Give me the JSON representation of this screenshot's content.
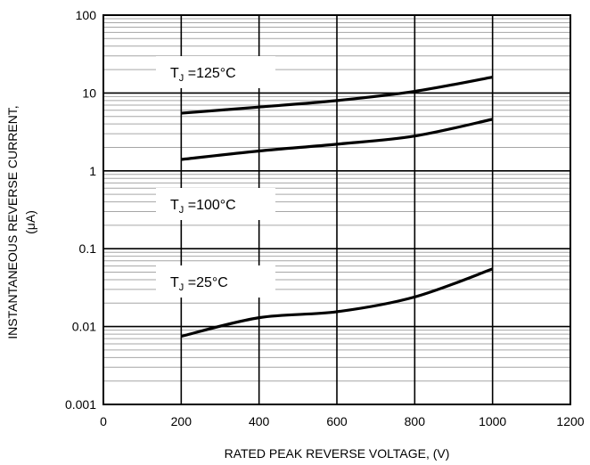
{
  "chart_data": {
    "type": "line",
    "title": "",
    "xlabel": "RATED PEAK REVERSE VOLTAGE, (V)",
    "ylabel": "INSTANTANEOUS REVERSE CURRENT,",
    "ylabel_unit": "(μA)",
    "xlim": [
      0,
      1200
    ],
    "ylim": [
      0.001,
      100
    ],
    "y_scale": "log",
    "grid": true,
    "x_ticks": [
      0,
      200,
      400,
      600,
      800,
      1000,
      1200
    ],
    "x_tick_labels": [
      "0",
      "200",
      "400",
      "600",
      "800",
      "1000",
      "1200"
    ],
    "y_ticks": [
      0.001,
      0.01,
      0.1,
      1,
      10,
      100
    ],
    "y_tick_labels": [
      "0.001",
      "0.01",
      "0.1",
      "1",
      "10",
      "100"
    ],
    "series": [
      {
        "name": "T_J = 125°C",
        "label_prefix": "T",
        "label_sub": "J",
        "label_suffix": " =125°C",
        "x": [
          200,
          400,
          600,
          800,
          1000
        ],
        "y": [
          5.5,
          6.6,
          8.0,
          10.5,
          16
        ]
      },
      {
        "name": "T_J = 100°C",
        "label_prefix": "T",
        "label_sub": "J",
        "label_suffix": " =100°C",
        "x": [
          200,
          400,
          600,
          800,
          1000
        ],
        "y": [
          1.4,
          1.8,
          2.2,
          2.8,
          4.6
        ]
      },
      {
        "name": "T_J = 25°C",
        "label_prefix": "T",
        "label_sub": "J",
        "label_suffix": " =25°C",
        "x": [
          200,
          400,
          600,
          800,
          1000
        ],
        "y": [
          0.0075,
          0.013,
          0.0155,
          0.024,
          0.055
        ]
      }
    ],
    "colors": {
      "line": "#000000",
      "grid_major": "#000000",
      "grid_minor": "#a6a6a6"
    }
  }
}
